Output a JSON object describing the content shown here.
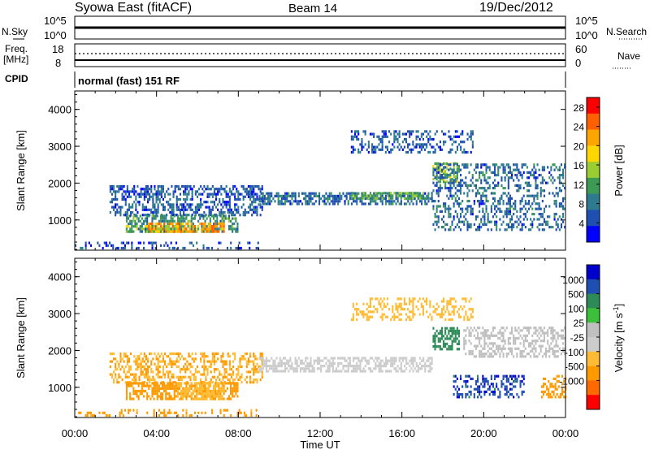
{
  "header": {
    "station": "Syowa East (fitACF)",
    "beam": "Beam 14",
    "date": "19/Dec/2012"
  },
  "side_labels": {
    "nsky": "N.Sky",
    "nsearch": "N.Search",
    "freq_line1": "Freq.",
    "freq_line2": "[MHz]",
    "nave": "Nave",
    "cpid": "CPID"
  },
  "noise_panel": {
    "left_ticks": [
      "10^5",
      "10^0"
    ],
    "right_ticks": [
      "10^5",
      "10^0"
    ]
  },
  "freq_panel": {
    "left_ticks": [
      "18",
      "8"
    ],
    "right_ticks": [
      "60",
      "0"
    ]
  },
  "cpid_text": "normal (fast) 151 RF",
  "x_axis": {
    "label": "Time UT",
    "ticks": [
      "00:00",
      "04:00",
      "08:00",
      "12:00",
      "16:00",
      "20:00",
      "00:00"
    ]
  },
  "colors": {
    "power_scale": [
      "#0000ff",
      "#1f4fb0",
      "#2e7a8f",
      "#3c9a54",
      "#9acd32",
      "#ffd700",
      "#ffa500",
      "#ff6000",
      "#ff0000"
    ],
    "velocity_scale": [
      "#ff0000",
      "#ff6a00",
      "#ff9900",
      "#ffbb33",
      "#cccccc",
      "#bfbfbf",
      "#3cc03c",
      "#2e8b57",
      "#1f4fb0",
      "#0000cc"
    ]
  },
  "chart_data": [
    {
      "type": "heatmap",
      "title": "",
      "ylabel": "Slant Range [km]",
      "xlabel": "",
      "xlim": [
        "00:00",
        "24:00"
      ],
      "ylim": [
        180,
        4500
      ],
      "yticks": [
        1000,
        2000,
        3000,
        4000
      ],
      "colorbar": {
        "label": "Power [dB]",
        "ticks": [
          4,
          8,
          12,
          16,
          20,
          24,
          28
        ],
        "range": [
          0,
          30
        ]
      },
      "regions": [
        {
          "t_start": 1.7,
          "t_end": 9.2,
          "r_start": 1100,
          "r_end": 1900,
          "value": 6,
          "density": 0.5
        },
        {
          "t_start": 2.5,
          "t_end": 8.0,
          "r_start": 650,
          "r_end": 1100,
          "value": 10,
          "density": 0.6
        },
        {
          "t_start": 3.5,
          "t_end": 7.3,
          "r_start": 650,
          "r_end": 900,
          "value": 22,
          "density": 0.7
        },
        {
          "t_start": 2.5,
          "t_end": 5.0,
          "r_start": 650,
          "r_end": 850,
          "value": 14,
          "density": 0.6
        },
        {
          "t_start": 9.0,
          "t_end": 17.5,
          "r_start": 1400,
          "r_end": 1700,
          "value": 7,
          "density": 0.6
        },
        {
          "t_start": 13.5,
          "t_end": 17.5,
          "r_start": 1550,
          "r_end": 1700,
          "value": 12,
          "density": 0.5
        },
        {
          "t_start": 13.5,
          "t_end": 19.5,
          "r_start": 2800,
          "r_end": 3400,
          "value": 6,
          "density": 0.35
        },
        {
          "t_start": 17.5,
          "t_end": 18.8,
          "r_start": 2000,
          "r_end": 2500,
          "value": 14,
          "density": 0.6
        },
        {
          "t_start": 17.5,
          "t_end": 24.0,
          "r_start": 700,
          "r_end": 2500,
          "value": 7,
          "density": 0.35
        },
        {
          "t_start": 0.0,
          "t_end": 9.0,
          "r_start": 200,
          "r_end": 400,
          "value": 5,
          "density": 0.25
        }
      ]
    },
    {
      "type": "heatmap",
      "title": "",
      "ylabel": "Slant Range [km]",
      "xlabel": "Time UT",
      "xlim": [
        "00:00",
        "24:00"
      ],
      "ylim": [
        180,
        4500
      ],
      "yticks": [
        1000,
        2000,
        3000,
        4000
      ],
      "colorbar": {
        "label": "Velocity [m s^-1]",
        "ticks": [
          "1000",
          "500",
          "100",
          "25",
          "-25",
          "-100",
          "-500",
          "-1000"
        ]
      },
      "regions": [
        {
          "t_start": 1.7,
          "t_end": 9.2,
          "r_start": 1100,
          "r_end": 1900,
          "value": -100,
          "density": 0.45
        },
        {
          "t_start": 2.5,
          "t_end": 8.0,
          "r_start": 650,
          "r_end": 1100,
          "value": -200,
          "density": 0.6
        },
        {
          "t_start": 5.0,
          "t_end": 7.3,
          "r_start": 650,
          "r_end": 1100,
          "value": -50,
          "density": 0.6
        },
        {
          "t_start": 9.0,
          "t_end": 17.5,
          "r_start": 1400,
          "r_end": 1800,
          "value": 0,
          "density": 0.6
        },
        {
          "t_start": 13.5,
          "t_end": 19.5,
          "r_start": 2800,
          "r_end": 3400,
          "value": -60,
          "density": 0.35
        },
        {
          "t_start": 17.5,
          "t_end": 18.8,
          "r_start": 2000,
          "r_end": 2600,
          "value": 300,
          "density": 0.6
        },
        {
          "t_start": 18.5,
          "t_end": 22.0,
          "r_start": 700,
          "r_end": 1300,
          "value": 800,
          "density": 0.4
        },
        {
          "t_start": 19.0,
          "t_end": 24.0,
          "r_start": 1800,
          "r_end": 2600,
          "value": 10,
          "density": 0.45
        },
        {
          "t_start": 22.8,
          "t_end": 24.0,
          "r_start": 700,
          "r_end": 1300,
          "value": -200,
          "density": 0.45
        },
        {
          "t_start": 0.0,
          "t_end": 9.0,
          "r_start": 200,
          "r_end": 400,
          "value": -150,
          "density": 0.25
        }
      ]
    }
  ]
}
